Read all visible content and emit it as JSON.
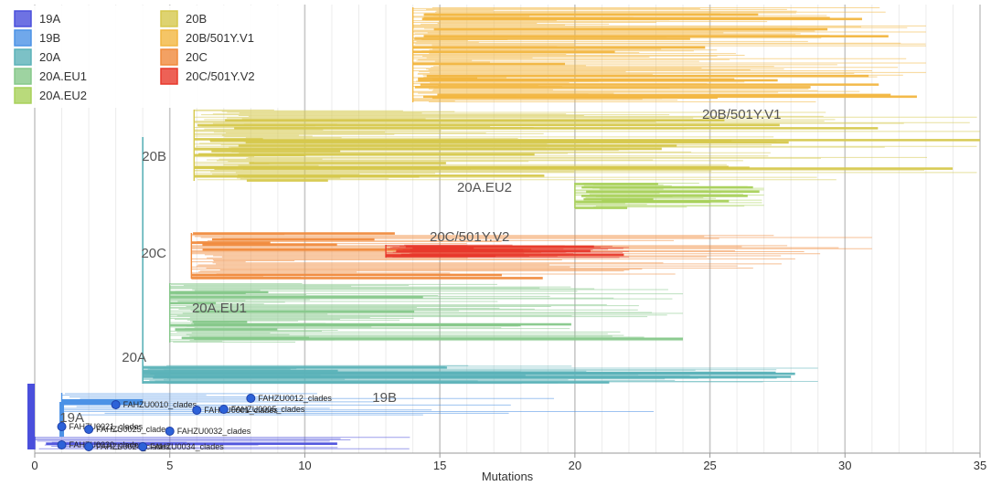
{
  "chart_data": {
    "type": "phylogenetic-tree",
    "xlabel": "Mutations",
    "xlim": [
      0,
      35
    ],
    "x_ticks": [
      0,
      5,
      10,
      15,
      20,
      25,
      30,
      35
    ],
    "legend": [
      {
        "name": "19A",
        "color": "#4a4fdc"
      },
      {
        "name": "19B",
        "color": "#4c92e6"
      },
      {
        "name": "20A",
        "color": "#5bb2b8"
      },
      {
        "name": "20A.EU1",
        "color": "#86c88a"
      },
      {
        "name": "20A.EU2",
        "color": "#a8d15a"
      },
      {
        "name": "20B",
        "color": "#d6c84c"
      },
      {
        "name": "20B/501Y.V1",
        "color": "#f2b640"
      },
      {
        "name": "20C",
        "color": "#f08a3c"
      },
      {
        "name": "20C/501Y.V2",
        "color": "#e8392c"
      }
    ],
    "clades": [
      {
        "name": "19A",
        "root_x": 0,
        "tip_min": 0,
        "tip_max": 14,
        "color": "#4a4fdc",
        "label": "19A"
      },
      {
        "name": "19B",
        "root_x": 1,
        "tip_min": 2,
        "tip_max": 24,
        "color": "#4c92e6",
        "label": "19B"
      },
      {
        "name": "20A",
        "root_x": 4,
        "tip_min": 4,
        "tip_max": 29,
        "color": "#5bb2b8",
        "label": "20A"
      },
      {
        "name": "20A.EU1",
        "root_x": 5,
        "tip_min": 5,
        "tip_max": 24,
        "color": "#86c88a",
        "label": "20A.EU1"
      },
      {
        "name": "20C",
        "root_x": 5.8,
        "tip_min": 6,
        "tip_max": 31,
        "color": "#f08a3c",
        "label": "20C"
      },
      {
        "name": "20C/501Y.V2",
        "root_x": 13,
        "tip_min": 13,
        "tip_max": 22,
        "color": "#e8392c",
        "label": "20C/501Y.V2"
      },
      {
        "name": "20A.EU2",
        "root_x": 20,
        "tip_min": 20,
        "tip_max": 27,
        "color": "#a8d15a",
        "label": "20A.EU2"
      },
      {
        "name": "20B",
        "root_x": 5.9,
        "tip_min": 7,
        "tip_max": 35,
        "color": "#d6c84c",
        "label": "20B"
      },
      {
        "name": "20B/501Y.V1",
        "root_x": 14,
        "tip_min": 14,
        "tip_max": 33,
        "color": "#f2b640",
        "label": "20B/501Y.V1"
      }
    ],
    "samples": [
      {
        "name": "FAHZU0012_clades",
        "x": 8
      },
      {
        "name": "FAHZU0010_clades",
        "x": 3
      },
      {
        "name": "FAHZU0001_clades",
        "x": 6
      },
      {
        "name": "FAHZU0005_clades",
        "x": 7
      },
      {
        "name": "FAHZU0021_clades",
        "x": 1
      },
      {
        "name": "FAHZU0025_clades",
        "x": 2
      },
      {
        "name": "FAHZU0032_clades",
        "x": 5
      },
      {
        "name": "FAHZU0030_clades",
        "x": 1
      },
      {
        "name": "FAHZU0024_clades",
        "x": 2
      },
      {
        "name": "FAHZU0034_clades",
        "x": 4
      }
    ]
  }
}
